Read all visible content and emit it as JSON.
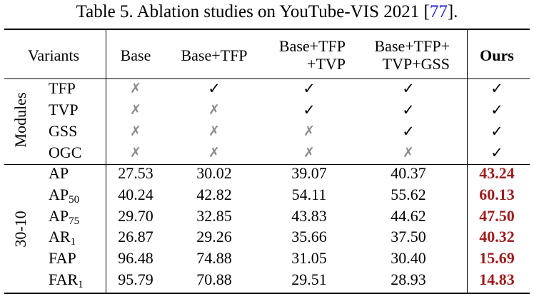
{
  "caption": {
    "prefix": "Table 5. Ablation studies on YouTube-VIS 2021 [",
    "cite": "77",
    "suffix": "]."
  },
  "header": {
    "variants": "Variants",
    "base": "Base",
    "base_tfp": "Base+TFP",
    "col3_l1": "Base+TFP",
    "col3_l2": "+TVP",
    "col4_l1": "Base+TFP+",
    "col4_l2": "TVP+GSS",
    "ours": "Ours"
  },
  "symbols": {
    "check": "✓",
    "cross": "✗"
  },
  "modules": {
    "group_label": "Modules",
    "rows": [
      {
        "name": "TFP",
        "marks": [
          false,
          true,
          true,
          true,
          true
        ]
      },
      {
        "name": "TVP",
        "marks": [
          false,
          false,
          true,
          true,
          true
        ]
      },
      {
        "name": "GSS",
        "marks": [
          false,
          false,
          false,
          true,
          true
        ]
      },
      {
        "name": "OGC",
        "marks": [
          false,
          false,
          false,
          false,
          true
        ]
      }
    ]
  },
  "metrics": {
    "group_label": "30-10",
    "rows": [
      {
        "base": "AP",
        "sub": "",
        "values": [
          "27.53",
          "30.02",
          "39.07",
          "40.37",
          "43.24"
        ]
      },
      {
        "base": "AP",
        "sub": "50",
        "values": [
          "40.24",
          "42.82",
          "54.11",
          "55.62",
          "60.13"
        ]
      },
      {
        "base": "AP",
        "sub": "75",
        "values": [
          "29.70",
          "32.85",
          "43.83",
          "44.62",
          "47.50"
        ]
      },
      {
        "base": "AR",
        "sub": "1",
        "values": [
          "26.87",
          "29.26",
          "35.66",
          "37.50",
          "40.32"
        ]
      },
      {
        "base": "FAP",
        "sub": "",
        "values": [
          "96.48",
          "74.88",
          "31.05",
          "30.40",
          "15.69"
        ]
      },
      {
        "base": "FAR",
        "sub": "1",
        "values": [
          "95.79",
          "70.88",
          "29.51",
          "28.93",
          "14.83"
        ]
      }
    ]
  }
}
